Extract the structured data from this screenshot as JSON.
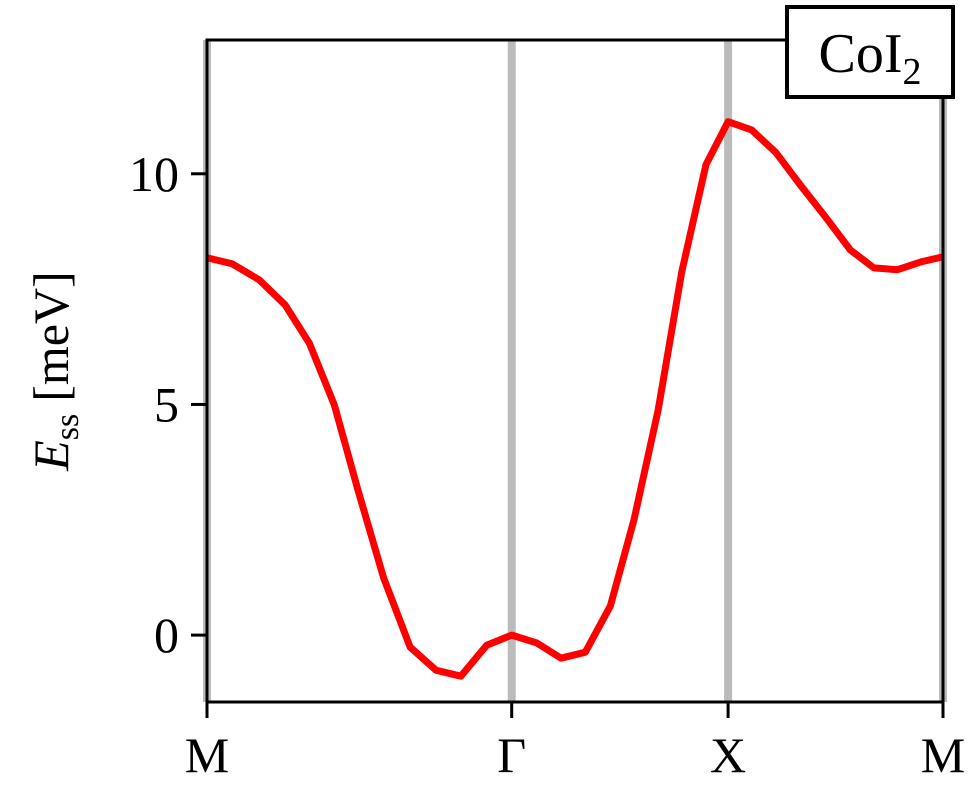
{
  "chart_data": {
    "type": "line",
    "y_label": {
      "symbol": "E",
      "subscript": "ss",
      "unit": "[meV]"
    },
    "annotation": {
      "text": "CoI",
      "subscript": "2"
    },
    "x": [
      0,
      0.034,
      0.071,
      0.106,
      0.139,
      0.173,
      0.205,
      0.24,
      0.276,
      0.311,
      0.345,
      0.38,
      0.414,
      0.448,
      0.481,
      0.514,
      0.548,
      0.58,
      0.613,
      0.645,
      0.678,
      0.708,
      0.74,
      0.773,
      0.806,
      0.841,
      0.874,
      0.906,
      0.938,
      0.97,
      1
    ],
    "series": [
      {
        "color": "#ff0000",
        "values": [
          8.18,
          8.05,
          7.7,
          7.16,
          6.33,
          4.99,
          3.15,
          1.24,
          -0.26,
          -0.76,
          -0.89,
          -0.22,
          0.0,
          -0.17,
          -0.5,
          -0.37,
          0.63,
          2.49,
          4.88,
          7.87,
          10.2,
          11.13,
          10.95,
          10.46,
          9.76,
          9.05,
          8.35,
          7.96,
          7.92,
          8.09,
          8.2
        ]
      }
    ],
    "xlim": [
      0,
      1
    ],
    "xticks": [
      {
        "value": 0,
        "label": "M"
      },
      {
        "value": 0.414,
        "label": "Γ"
      },
      {
        "value": 0.708,
        "label": "X"
      },
      {
        "value": 1,
        "label": "M"
      }
    ],
    "ylim": [
      -1.45,
      12.9
    ],
    "yticks": [
      0,
      5,
      10
    ],
    "x_grid": true,
    "grid_color": "#bbbbbb"
  }
}
